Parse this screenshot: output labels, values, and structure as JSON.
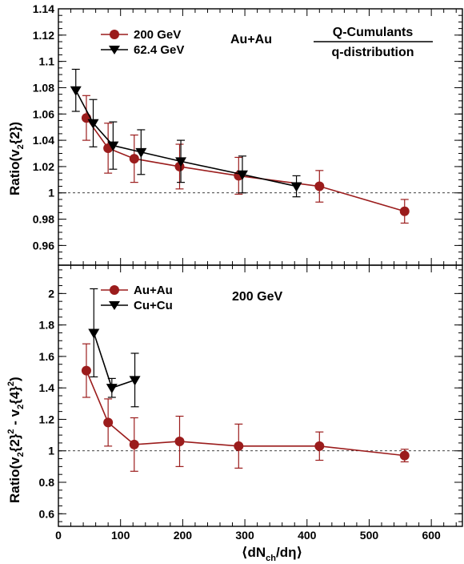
{
  "chart_data": [
    {
      "type": "line",
      "panel": "top",
      "ylabel_main": "Ratio(v",
      "ylabel_sub": "2",
      "ylabel_rest": "{2})",
      "ylim": [
        0.945,
        1.14
      ],
      "xlim": [
        0,
        650
      ],
      "yticks": [
        0.96,
        0.98,
        1,
        1.02,
        1.04,
        1.06,
        1.08,
        1.1,
        1.12,
        1.14
      ],
      "ytick_labels": [
        "0.96",
        "0.98",
        "1",
        "1.02",
        "1.04",
        "1.06",
        "1.08",
        "1.1",
        "1.12",
        "1.14"
      ],
      "reference_line": 1,
      "legend_placement": "top-left",
      "annotations": {
        "system": "Au+Au",
        "method_top": "Q-Cumulants",
        "method_bottom": "q-distribution"
      },
      "colors": {
        "red": "#9b1c1c",
        "black": "#000000"
      },
      "series": [
        {
          "name": "200 GeV",
          "color": "red",
          "marker": "circle",
          "points": [
            {
              "x": 45,
              "y": 1.057,
              "err": 0.017
            },
            {
              "x": 80,
              "y": 1.034,
              "err": 0.019
            },
            {
              "x": 122,
              "y": 1.026,
              "err": 0.018
            },
            {
              "x": 195,
              "y": 1.02,
              "err": 0.017
            },
            {
              "x": 290,
              "y": 1.013,
              "err": 0.014
            },
            {
              "x": 420,
              "y": 1.005,
              "err": 0.012
            },
            {
              "x": 557,
              "y": 0.986,
              "err": 0.009
            }
          ]
        },
        {
          "name": "62.4 GeV",
          "color": "black",
          "marker": "triangle-down",
          "points": [
            {
              "x": 28,
              "y": 1.078,
              "err": 0.016
            },
            {
              "x": 56,
              "y": 1.053,
              "err": 0.018
            },
            {
              "x": 88,
              "y": 1.036,
              "err": 0.018
            },
            {
              "x": 133,
              "y": 1.031,
              "err": 0.017
            },
            {
              "x": 197,
              "y": 1.024,
              "err": 0.016
            },
            {
              "x": 296,
              "y": 1.014,
              "err": 0.014
            },
            {
              "x": 383,
              "y": 1.005,
              "err": 0.008
            }
          ]
        }
      ]
    },
    {
      "type": "line",
      "panel": "bottom",
      "ylabel_main": "Ratio(v",
      "ylabel_rest1": "{2}",
      "ylabel_rest2": " - v",
      "ylabel_rest3": "{4}",
      "ylabel_end": ")",
      "ylabel_sub": "2",
      "ylabel_sup": "2",
      "xlabel_main": "⟨dN",
      "xlabel_sub": "ch",
      "xlabel_rest": "/dη⟩",
      "ylim": [
        0.52,
        2.18
      ],
      "xlim": [
        0,
        650
      ],
      "yticks": [
        0.6,
        0.8,
        1,
        1.2,
        1.4,
        1.6,
        1.8,
        2
      ],
      "ytick_labels": [
        "0.6",
        "0.8",
        "1",
        "1.2",
        "1.4",
        "1.6",
        "1.8",
        "2"
      ],
      "xticks": [
        0,
        100,
        200,
        300,
        400,
        500,
        600
      ],
      "xtick_labels": [
        "0",
        "100",
        "200",
        "300",
        "400",
        "500",
        "600"
      ],
      "reference_line": 1,
      "legend_placement": "top-left",
      "annotations": {
        "energy": "200 GeV"
      },
      "series": [
        {
          "name": "Au+Au",
          "color": "red",
          "marker": "circle",
          "points": [
            {
              "x": 45,
              "y": 1.51,
              "err": 0.17
            },
            {
              "x": 80,
              "y": 1.18,
              "err": 0.15
            },
            {
              "x": 122,
              "y": 1.04,
              "err": 0.17
            },
            {
              "x": 195,
              "y": 1.06,
              "err": 0.16
            },
            {
              "x": 290,
              "y": 1.03,
              "err": 0.14
            },
            {
              "x": 420,
              "y": 1.03,
              "err": 0.09
            },
            {
              "x": 557,
              "y": 0.97,
              "err": 0.04
            }
          ]
        },
        {
          "name": "Cu+Cu",
          "color": "black",
          "marker": "triangle-down",
          "points": [
            {
              "x": 57,
              "y": 1.75,
              "err": 0.28
            },
            {
              "x": 86,
              "y": 1.4,
              "err": 0.06
            },
            {
              "x": 123,
              "y": 1.45,
              "err": 0.17
            }
          ]
        }
      ]
    }
  ]
}
